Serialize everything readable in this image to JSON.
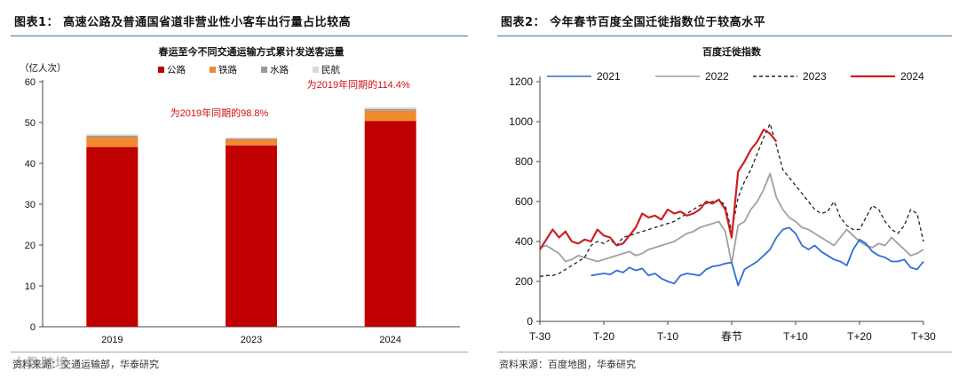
{
  "left": {
    "fig_title": "图表1：  高速公路及普通国省道非营业性小客车出行量占比较高",
    "source": "资料来源：交通运输部，华泰研究",
    "watermark": "大数跨境"
  },
  "right": {
    "fig_title": "图表2：  今年春节百度全国迁徙指数位于较高水平",
    "source": "资料来源：百度地图，华泰研究"
  },
  "chart_data": [
    {
      "type": "bar",
      "stacked": true,
      "title": "春运至今不同交通运输方式累计发送客运量",
      "ylabel": "（亿人次）",
      "ylim": [
        0,
        60
      ],
      "yticks": [
        0,
        10,
        20,
        30,
        40,
        50,
        60
      ],
      "categories": [
        "2019",
        "2023",
        "2024"
      ],
      "series": [
        {
          "name": "公路",
          "color": "#c00000",
          "values": [
            44.0,
            44.4,
            50.4
          ]
        },
        {
          "name": "铁路",
          "color": "#ef8a2e",
          "values": [
            2.4,
            1.5,
            2.5
          ]
        },
        {
          "name": "水路",
          "color": "#9a9a9a",
          "values": [
            0.4,
            0.2,
            0.4
          ]
        },
        {
          "name": "民航",
          "color": "#d9d9d9",
          "values": [
            0.3,
            0.2,
            0.4
          ]
        }
      ],
      "annotations": [
        {
          "text": "为2019年同期的98.8%",
          "category": "2023",
          "y": 51.5
        },
        {
          "text": "为2019年同期的114.4%",
          "category": "2024",
          "y": 58.5
        }
      ],
      "legend": "top"
    },
    {
      "type": "line",
      "title": "百度迁徙指数",
      "ylim": [
        0,
        1200
      ],
      "yticks": [
        0,
        200,
        400,
        600,
        800,
        1000,
        1200
      ],
      "xlim": [
        -30,
        30
      ],
      "xticks": [
        {
          "x": -30,
          "label": "T-30"
        },
        {
          "x": -20,
          "label": "T-20"
        },
        {
          "x": -10,
          "label": "T-10"
        },
        {
          "x": 0,
          "label": "春节"
        },
        {
          "x": 10,
          "label": "T+10"
        },
        {
          "x": 20,
          "label": "T+20"
        },
        {
          "x": 30,
          "label": "T+30"
        }
      ],
      "legend": "top",
      "series": [
        {
          "name": "2021",
          "color": "#2f6fd6",
          "dash": "solid",
          "x": [
            -22,
            -21,
            -20,
            -19,
            -18,
            -17,
            -16,
            -15,
            -14,
            -13,
            -12,
            -11,
            -10,
            -9,
            -8,
            -7,
            -6,
            -5,
            -4,
            -3,
            -2,
            -1,
            0,
            1,
            2,
            3,
            4,
            5,
            6,
            7,
            8,
            9,
            10,
            11,
            12,
            13,
            14,
            15,
            16,
            17,
            18,
            19,
            20,
            21,
            22,
            23,
            24,
            25,
            26,
            27,
            28,
            29,
            30
          ],
          "y": [
            230,
            235,
            240,
            235,
            255,
            245,
            270,
            255,
            265,
            230,
            240,
            215,
            200,
            190,
            230,
            240,
            235,
            230,
            260,
            275,
            280,
            290,
            295,
            180,
            260,
            280,
            300,
            330,
            360,
            420,
            460,
            470,
            440,
            380,
            360,
            380,
            350,
            330,
            310,
            300,
            280,
            360,
            410,
            390,
            350,
            330,
            320,
            300,
            300,
            310,
            270,
            260,
            300
          ]
        },
        {
          "name": "2022",
          "color": "#a0a0a0",
          "dash": "solid",
          "x": [
            -30,
            -29,
            -28,
            -27,
            -26,
            -25,
            -24,
            -23,
            -22,
            -21,
            -20,
            -19,
            -18,
            -17,
            -16,
            -15,
            -14,
            -13,
            -12,
            -11,
            -10,
            -9,
            -8,
            -7,
            -6,
            -5,
            -4,
            -3,
            -2,
            -1,
            0,
            1,
            2,
            3,
            4,
            5,
            6,
            7,
            8,
            9,
            10,
            11,
            12,
            13,
            14,
            15,
            16,
            17,
            18,
            19,
            20,
            21,
            22,
            23,
            24,
            25,
            26,
            27,
            28,
            29,
            30
          ],
          "y": [
            370,
            380,
            360,
            340,
            300,
            310,
            330,
            320,
            310,
            300,
            310,
            320,
            330,
            340,
            350,
            330,
            340,
            360,
            370,
            380,
            390,
            400,
            420,
            440,
            450,
            470,
            480,
            490,
            500,
            450,
            290,
            480,
            500,
            560,
            600,
            660,
            740,
            620,
            560,
            520,
            500,
            470,
            460,
            440,
            420,
            400,
            380,
            420,
            460,
            430,
            400,
            380,
            370,
            390,
            380,
            420,
            390,
            360,
            330,
            340,
            360
          ]
        },
        {
          "name": "2023",
          "color": "#222222",
          "dash": "dashed",
          "x": [
            -30,
            -29,
            -28,
            -27,
            -26,
            -25,
            -24,
            -23,
            -22,
            -21,
            -20,
            -19,
            -18,
            -17,
            -16,
            -15,
            -14,
            -13,
            -12,
            -11,
            -10,
            -9,
            -8,
            -7,
            -6,
            -5,
            -4,
            -3,
            -2,
            -1,
            0,
            1,
            2,
            3,
            4,
            5,
            6,
            7,
            8,
            9,
            10,
            11,
            12,
            13,
            14,
            15,
            16,
            17,
            18,
            19,
            20,
            21,
            22,
            23,
            24,
            25,
            26,
            27,
            28,
            29,
            30
          ],
          "y": [
            225,
            230,
            230,
            240,
            260,
            280,
            300,
            320,
            380,
            400,
            390,
            410,
            380,
            420,
            430,
            440,
            450,
            460,
            470,
            480,
            490,
            500,
            520,
            540,
            560,
            580,
            590,
            600,
            610,
            580,
            450,
            620,
            700,
            760,
            840,
            920,
            990,
            880,
            760,
            720,
            680,
            640,
            600,
            560,
            540,
            550,
            600,
            520,
            480,
            460,
            460,
            520,
            580,
            560,
            500,
            460,
            440,
            480,
            560,
            540,
            400
          ]
        },
        {
          "name": "2024",
          "color": "#cc1f1f",
          "dash": "solid",
          "x": [
            -30,
            -29,
            -28,
            -27,
            -26,
            -25,
            -24,
            -23,
            -22,
            -21,
            -20,
            -19,
            -18,
            -17,
            -16,
            -15,
            -14,
            -13,
            -12,
            -11,
            -10,
            -9,
            -8,
            -7,
            -6,
            -5,
            -4,
            -3,
            -2,
            -1,
            0,
            1,
            2,
            3,
            4,
            5,
            6,
            7
          ],
          "y": [
            360,
            410,
            460,
            420,
            450,
            400,
            390,
            410,
            400,
            460,
            430,
            420,
            380,
            390,
            430,
            470,
            540,
            520,
            530,
            510,
            560,
            540,
            550,
            530,
            540,
            560,
            600,
            590,
            610,
            560,
            420,
            750,
            800,
            860,
            900,
            960,
            940,
            900
          ]
        }
      ]
    }
  ]
}
